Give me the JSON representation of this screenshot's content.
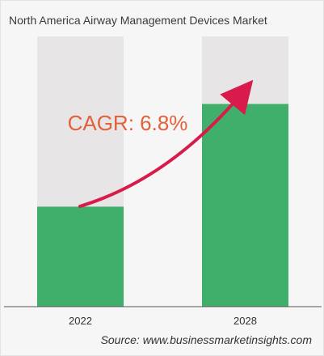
{
  "title": "North America Airway Management Devices Market",
  "source": "Source: www.businessmarketinsights.com",
  "annotation": {
    "text": "CAGR: 6.8%",
    "color": "#e3603a",
    "arrow_color": "#d81b4a"
  },
  "colors": {
    "bar_fill": "#3faf6b",
    "bar_background": "#e7e5e5",
    "axis_line": "#555555",
    "page_background": "#f6f6f6"
  },
  "chart_data": {
    "type": "bar",
    "categories": [
      "2022",
      "2028"
    ],
    "values": [
      0.37,
      0.75
    ],
    "value_scale": "relative fraction of full column height (no numeric axis printed)",
    "ylim": [
      0,
      1
    ],
    "xlabel": "",
    "ylabel": "",
    "grid": false,
    "legend": "none",
    "title": "North America Airway Management Devices Market"
  }
}
